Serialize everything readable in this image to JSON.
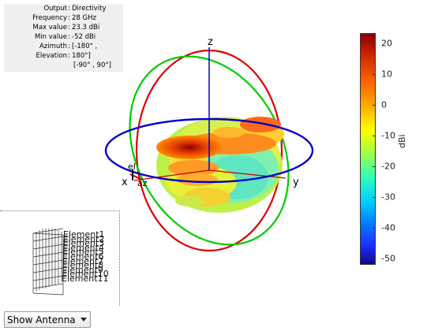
{
  "info": {
    "rows": [
      {
        "label": "Output",
        "value": "Directivity"
      },
      {
        "label": "Frequency",
        "value": "28 GHz"
      },
      {
        "label": "Max value",
        "value": "23.3 dBi"
      },
      {
        "label": "Min value",
        "value": "-52 dBi"
      },
      {
        "label": "Azimuth",
        "value": "[-180° ,"
      },
      {
        "label": "Elevation",
        "value": "180°]"
      }
    ],
    "extra_value": "[-90° , 90°]",
    "separator": ":"
  },
  "axes": {
    "z": "z",
    "x": "x",
    "y": "y",
    "el": "el",
    "az": "az"
  },
  "colorbar": {
    "ticks": [
      "20",
      "10",
      "0",
      "-10",
      "-20",
      "-30",
      "-40",
      "-50"
    ],
    "label": "dBi",
    "max": 23.3,
    "min": -52,
    "colors": {
      "high": "#8b0000",
      "mid": "#ffff00",
      "low": "#0a0a8a"
    }
  },
  "antenna": {
    "elements": [
      "Element1",
      "Element2",
      "Element3",
      "Element4",
      "Element5",
      "Element6",
      "Element7",
      "Element8",
      "Element9",
      "Element10",
      "Element11"
    ]
  },
  "dropdown": {
    "selected": "Show Antenna",
    "icon": "chevron-down-icon"
  },
  "colors": {
    "z_axis": "#0000cc",
    "x_axis": "#cc0000",
    "y_axis": "#cc0000",
    "circle_azimuth": "#0000cc",
    "circle_red": "#dd0000",
    "circle_green": "#00cc00"
  }
}
